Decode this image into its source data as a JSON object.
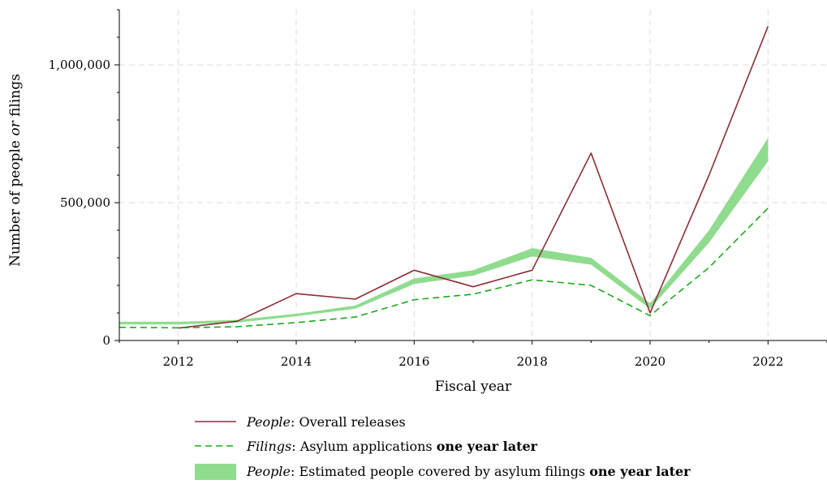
{
  "chart_data": {
    "type": "line",
    "xlabel": "Fiscal year",
    "ylabel": {
      "pre": "Number of people ",
      "em": "or",
      "post": " filings"
    },
    "xlim": [
      2011,
      2023
    ],
    "ylim": [
      0,
      1200000
    ],
    "x_ticks": [
      2012,
      2014,
      2016,
      2018,
      2020,
      2022
    ],
    "x_tick_labels": [
      "2012",
      "2014",
      "2016",
      "2018",
      "2020",
      "2022"
    ],
    "y_ticks": [
      0,
      500000,
      1000000
    ],
    "y_tick_labels": [
      "0",
      "500,000",
      "1,000,000"
    ],
    "grid": true,
    "legend_position": "below",
    "colors": {
      "people": "#8b2e36",
      "filings": "#1aa81a",
      "band": "#8fdc8f"
    },
    "x": [
      2011,
      2012,
      2013,
      2014,
      2015,
      2016,
      2017,
      2018,
      2019,
      2020,
      2021,
      2022
    ],
    "series": [
      {
        "id": "people",
        "style": "solid",
        "x": [
          2012,
          2013,
          2014,
          2015,
          2016,
          2017,
          2018,
          2019,
          2020,
          2021,
          2022
        ],
        "values": [
          45000,
          70000,
          170000,
          150000,
          255000,
          195000,
          255000,
          680000,
          100000,
          600000,
          1140000
        ]
      },
      {
        "id": "filings",
        "style": "dashed",
        "x": [
          2011,
          2012,
          2013,
          2014,
          2015,
          2016,
          2017,
          2018,
          2019,
          2020,
          2021,
          2022
        ],
        "values": [
          48000,
          46000,
          50000,
          65000,
          85000,
          148000,
          168000,
          220000,
          200000,
          90000,
          265000,
          480000
        ]
      },
      {
        "id": "band",
        "style": "band",
        "x": [
          2011,
          2012,
          2013,
          2014,
          2015,
          2016,
          2017,
          2018,
          2019,
          2020,
          2021,
          2022
        ],
        "lower": [
          58000,
          58000,
          65000,
          88000,
          115000,
          205000,
          235000,
          305000,
          275000,
          115000,
          355000,
          650000
        ],
        "upper": [
          68000,
          68000,
          75000,
          97000,
          127000,
          225000,
          255000,
          335000,
          300000,
          135000,
          400000,
          735000
        ]
      }
    ],
    "legend": [
      {
        "em": "People",
        "rest": ": Overall releases",
        "bold": ""
      },
      {
        "em": "Filings",
        "rest": ": Asylum applications ",
        "bold": "one year later"
      },
      {
        "em": "People",
        "rest": ": Estimated people covered by asylum filings ",
        "bold": "one year later"
      }
    ]
  }
}
